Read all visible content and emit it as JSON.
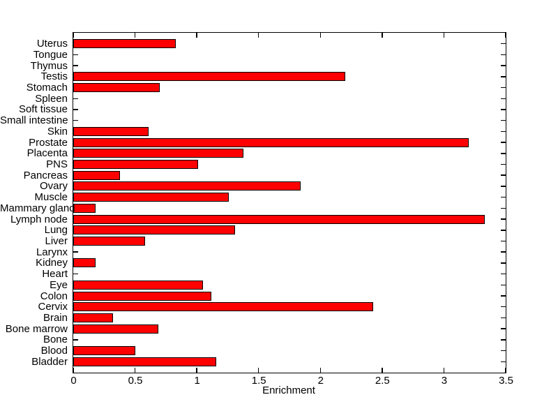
{
  "figure": {
    "background_color": "#ffffff"
  },
  "chart_data": {
    "type": "bar",
    "orientation": "horizontal",
    "title": "",
    "xlabel": "Enrichment",
    "ylabel": "",
    "xlim": [
      0,
      3.5
    ],
    "grid": false,
    "legend": null,
    "bar_color": "#ff0000",
    "bar_edge_color": "#000000",
    "axis_color": "#000000",
    "categories": [
      "Uterus",
      "Tongue",
      "Thymus",
      "Testis",
      "Stomach",
      "Spleen",
      "Soft tissue",
      "Small intestine",
      "Skin",
      "Prostate",
      "Placenta",
      "PNS",
      "Pancreas",
      "Ovary",
      "Muscle",
      "Mammary gland",
      "Lymph node",
      "Lung",
      "Liver",
      "Larynx",
      "Kidney",
      "Heart",
      "Eye",
      "Colon",
      "Cervix",
      "Brain",
      "Bone marrow",
      "Bone",
      "Blood",
      "Bladder"
    ],
    "values": [
      0.83,
      0,
      0,
      2.2,
      0.7,
      0,
      0,
      0,
      0.61,
      3.2,
      1.38,
      1.01,
      0.38,
      1.84,
      1.26,
      0.18,
      3.33,
      1.31,
      0.58,
      0,
      0.18,
      0,
      1.05,
      1.12,
      2.43,
      0.32,
      0.69,
      0,
      0.5,
      1.16
    ],
    "xticks": [
      0,
      0.5,
      1,
      1.5,
      2,
      2.5,
      3,
      3.5
    ],
    "xtick_labels": [
      "0",
      "0.5",
      "1",
      "1.5",
      "2",
      "2.5",
      "3",
      "3.5"
    ]
  }
}
